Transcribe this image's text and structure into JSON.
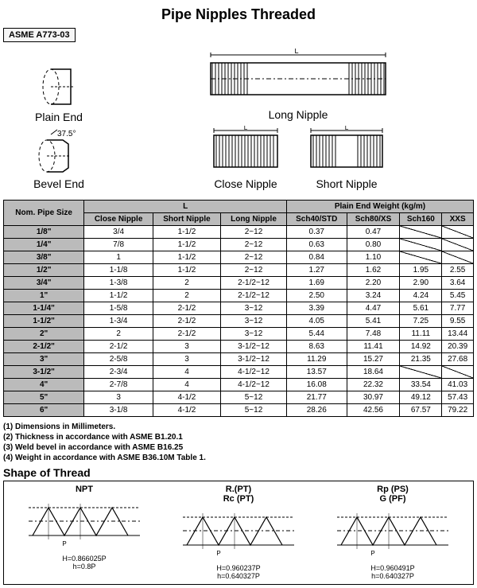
{
  "title": "Pipe Nipples Threaded",
  "spec_label": "ASME A773-03",
  "diagrams": {
    "plain_end": "Plain End",
    "bevel_end": "Bevel End",
    "bevel_angle": "37.5°",
    "long_nipple": "Long Nipple",
    "close_nipple": "Close Nipple",
    "short_nipple": "Short Nipple"
  },
  "table": {
    "header_top_size": "Nom. Pipe Size",
    "header_L": "L",
    "header_weight": "Plain End Weight (kg/m)",
    "cols_L": [
      "Close Nipple",
      "Short Nipple",
      "Long Nipple"
    ],
    "cols_W": [
      "Sch40/STD",
      "Sch80/XS",
      "Sch160",
      "XXS"
    ],
    "rows": [
      {
        "size": "1/8\"",
        "close": "3/4",
        "short": "1-1/2",
        "long": "2~12",
        "s40": "0.37",
        "s80": "0.47",
        "s160": "",
        "xxs": ""
      },
      {
        "size": "1/4\"",
        "close": "7/8",
        "short": "1-1/2",
        "long": "2~12",
        "s40": "0.63",
        "s80": "0.80",
        "s160": "",
        "xxs": ""
      },
      {
        "size": "3/8\"",
        "close": "1",
        "short": "1-1/2",
        "long": "2~12",
        "s40": "0.84",
        "s80": "1.10",
        "s160": "",
        "xxs": ""
      },
      {
        "size": "1/2\"",
        "close": "1-1/8",
        "short": "1-1/2",
        "long": "2~12",
        "s40": "1.27",
        "s80": "1.62",
        "s160": "1.95",
        "xxs": "2.55"
      },
      {
        "size": "3/4\"",
        "close": "1-3/8",
        "short": "2",
        "long": "2-1/2~12",
        "s40": "1.69",
        "s80": "2.20",
        "s160": "2.90",
        "xxs": "3.64"
      },
      {
        "size": "1\"",
        "close": "1-1/2",
        "short": "2",
        "long": "2-1/2~12",
        "s40": "2.50",
        "s80": "3.24",
        "s160": "4.24",
        "xxs": "5.45"
      },
      {
        "size": "1-1/4\"",
        "close": "1-5/8",
        "short": "2-1/2",
        "long": "3~12",
        "s40": "3.39",
        "s80": "4.47",
        "s160": "5.61",
        "xxs": "7.77"
      },
      {
        "size": "1-1/2\"",
        "close": "1-3/4",
        "short": "2-1/2",
        "long": "3~12",
        "s40": "4.05",
        "s80": "5.41",
        "s160": "7.25",
        "xxs": "9.55"
      },
      {
        "size": "2\"",
        "close": "2",
        "short": "2-1/2",
        "long": "3~12",
        "s40": "5.44",
        "s80": "7.48",
        "s160": "11.11",
        "xxs": "13.44"
      },
      {
        "size": "2-1/2\"",
        "close": "2-1/2",
        "short": "3",
        "long": "3-1/2~12",
        "s40": "8.63",
        "s80": "11.41",
        "s160": "14.92",
        "xxs": "20.39"
      },
      {
        "size": "3\"",
        "close": "2-5/8",
        "short": "3",
        "long": "3-1/2~12",
        "s40": "11.29",
        "s80": "15.27",
        "s160": "21.35",
        "xxs": "27.68"
      },
      {
        "size": "3-1/2\"",
        "close": "2-3/4",
        "short": "4",
        "long": "4-1/2~12",
        "s40": "13.57",
        "s80": "18.64",
        "s160": "",
        "xxs": ""
      },
      {
        "size": "4\"",
        "close": "2-7/8",
        "short": "4",
        "long": "4-1/2~12",
        "s40": "16.08",
        "s80": "22.32",
        "s160": "33.54",
        "xxs": "41.03"
      },
      {
        "size": "5\"",
        "close": "3",
        "short": "4-1/2",
        "long": "5~12",
        "s40": "21.77",
        "s80": "30.97",
        "s160": "49.12",
        "xxs": "57.43"
      },
      {
        "size": "6\"",
        "close": "3-1/8",
        "short": "4-1/2",
        "long": "5~12",
        "s40": "28.26",
        "s80": "42.56",
        "s160": "67.57",
        "xxs": "79.22"
      }
    ]
  },
  "notes": [
    "(1) Dimensions in Millimeters.",
    "(2) Thickness in accordance with ASME B1.20.1",
    "(3) Weld bevel in accordance with ASME B16.25",
    "(4) Weight in accordance with ASME B36.10M Table 1."
  ],
  "thread_title": "Shape of Thread",
  "threads": [
    {
      "label": "NPT",
      "sub1": "H=0.866025P",
      "sub2": "h=0.8P"
    },
    {
      "label": "R.(PT)\nRc (PT)",
      "sub1": "H=0.960237P",
      "sub2": "h=0.640327P"
    },
    {
      "label": "Rp (PS)\nG (PF)",
      "sub1": "H=0.960491P",
      "sub2": "h=0.640327P"
    }
  ]
}
